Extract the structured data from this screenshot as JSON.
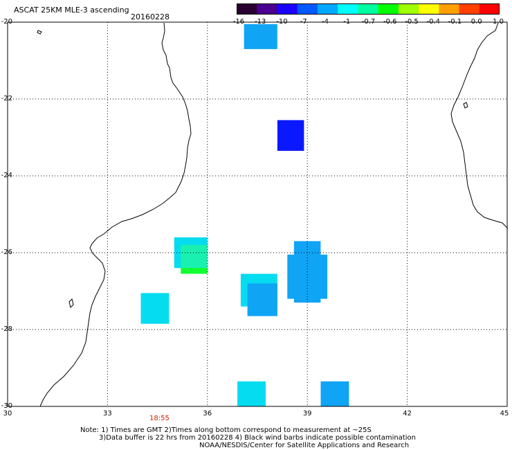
{
  "header": {
    "title": "ASCAT 25KM MLE-3 ascending",
    "date": "20160228"
  },
  "colorbar": {
    "labels": [
      "-16",
      "-13",
      "-10",
      "-7",
      "-4",
      "-1",
      "-0.7",
      "-0.6",
      "-0.5",
      "-0.4",
      "-0.1",
      "0.0",
      "1.0"
    ],
    "colors": [
      "#2a0030",
      "#4a0090",
      "#1a00ff",
      "#0058ff",
      "#00a8ff",
      "#00ffff",
      "#00ffa0",
      "#00ff00",
      "#a0ff00",
      "#ffff00",
      "#ffa000",
      "#ff4000",
      "#ff0000"
    ]
  },
  "axes": {
    "y_ticks": [
      "-20",
      "-22",
      "-24",
      "-26",
      "-28",
      "-30"
    ],
    "x_ticks": [
      "30",
      "33",
      "36",
      "39",
      "42",
      "45"
    ],
    "xlim": [
      30,
      45
    ],
    "ylim": [
      -30,
      -20
    ],
    "grid": true
  },
  "time_label": "18:55",
  "cells": [
    {
      "lon0": 37.1,
      "lon1": 38.1,
      "lat0": -20.05,
      "lat1": -20.7,
      "color": "#10a4f4"
    },
    {
      "lon0": 38.1,
      "lon1": 38.9,
      "lat0": -22.55,
      "lat1": -23.35,
      "color": "#0a18ff"
    },
    {
      "lon0": 35.0,
      "lon1": 36.0,
      "lat0": -25.6,
      "lat1": -26.4,
      "color": "#06dcf0"
    },
    {
      "lon0": 35.2,
      "lon1": 36.0,
      "lat0": -25.8,
      "lat1": -26.55,
      "color": "#10ff30"
    },
    {
      "lon0": 35.2,
      "lon1": 36.0,
      "lat0": -25.8,
      "lat1": -26.4,
      "color": "#1af0b0"
    },
    {
      "lon0": 38.6,
      "lon1": 39.4,
      "lat0": -25.7,
      "lat1": -27.3,
      "color": "#10a4f4"
    },
    {
      "lon0": 38.4,
      "lon1": 39.6,
      "lat0": -26.05,
      "lat1": -27.2,
      "color": "#10a4f4"
    },
    {
      "lon0": 37.0,
      "lon1": 38.1,
      "lat0": -26.55,
      "lat1": -27.4,
      "color": "#06dcf0"
    },
    {
      "lon0": 37.2,
      "lon1": 38.1,
      "lat0": -26.8,
      "lat1": -27.65,
      "color": "#10a4f4"
    },
    {
      "lon0": 34.0,
      "lon1": 34.85,
      "lat0": -27.05,
      "lat1": -27.85,
      "color": "#06dcf0"
    },
    {
      "lon0": 36.9,
      "lon1": 37.75,
      "lat0": -29.35,
      "lat1": -30.0,
      "color": "#06dcf0"
    },
    {
      "lon0": 39.4,
      "lon1": 40.25,
      "lat0": -29.35,
      "lat1": -30.0,
      "color": "#10a4f4"
    }
  ],
  "notes": {
    "line1": "Note: 1) Times are GMT 2)Times along bottom correspond to measurement at ~25S",
    "line2": "3)Data buffer is 22 hrs from 20160228 4) Black wind barbs indicate possible contamination",
    "line3": "NOAA/NESDIS/Center for Satellite Applications and Research"
  }
}
